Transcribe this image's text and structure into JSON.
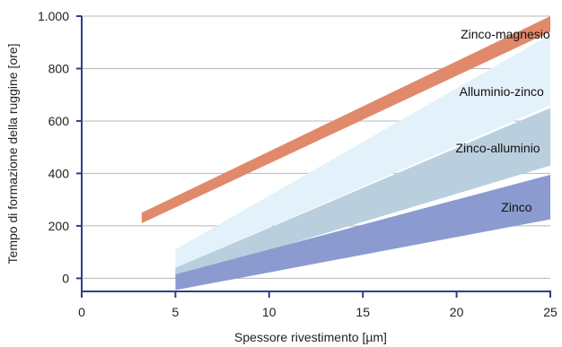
{
  "chart_data": {
    "type": "area",
    "xlabel": "Spessore rivestimento [µm]",
    "ylabel": "Tempo di formazione della ruggine [ore]",
    "xlim": [
      0,
      25
    ],
    "ylim": [
      -50,
      1000
    ],
    "x_ticks": [
      0,
      5,
      10,
      15,
      20,
      25
    ],
    "x_tick_labels": [
      "0",
      "5",
      "10",
      "15",
      "20",
      "25"
    ],
    "y_ticks": [
      0,
      200,
      400,
      600,
      800,
      1000
    ],
    "y_tick_labels": [
      "0",
      "200",
      "400",
      "600",
      "800",
      "1.000"
    ],
    "grid": "horizontal",
    "series": [
      {
        "name": "Zinco-magnesio",
        "color": "#e08a6b",
        "x": [
          3.2,
          25
        ],
        "lower": [
          210,
          940
        ],
        "upper": [
          250,
          1000
        ],
        "upper_cap": 1000
      },
      {
        "name": "Alluminio-zinco",
        "color": "#e3f1fb",
        "x": [
          5,
          25
        ],
        "lower": [
          40,
          660
        ],
        "upper": [
          110,
          930
        ]
      },
      {
        "name": "Zinco-alluminio",
        "color": "#bacfde",
        "x": [
          5,
          25
        ],
        "lower": [
          0,
          430
        ],
        "upper": [
          40,
          650
        ]
      },
      {
        "name": "Zinco",
        "color": "#8b9bcf",
        "x": [
          5,
          25
        ],
        "lower": [
          -45,
          225
        ],
        "upper": [
          15,
          395
        ]
      }
    ]
  }
}
